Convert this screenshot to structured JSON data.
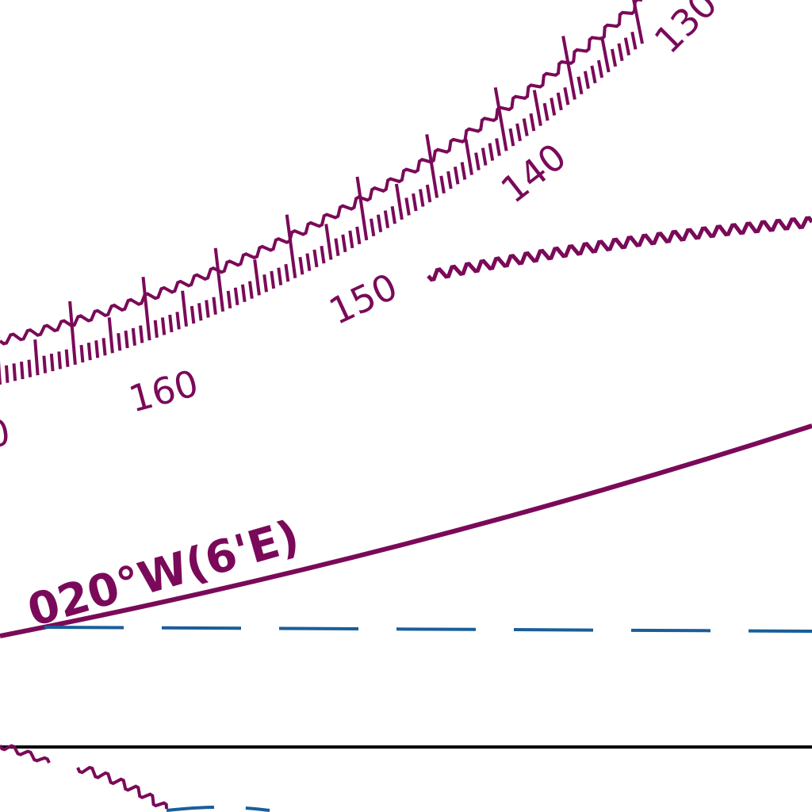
{
  "map": {
    "compass_rose": {
      "ring_labels": [
        "160",
        "150",
        "140",
        "130"
      ],
      "partial_label": "0"
    },
    "isogonic_line": {
      "label": "020°W(6'E)"
    },
    "colors": {
      "magenta": "#7a0a59",
      "blue": "#1a5e9a",
      "black": "#000000"
    }
  }
}
